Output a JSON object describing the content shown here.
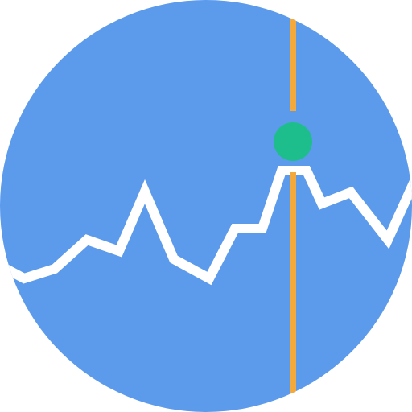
{
  "icon": {
    "name": "line-chart-with-cursor-icon",
    "colors": {
      "circle": "#5C9BEB",
      "line": "#FFFFFF",
      "cursor": "#F3A93C",
      "marker": "#1EBE8C"
    }
  }
}
